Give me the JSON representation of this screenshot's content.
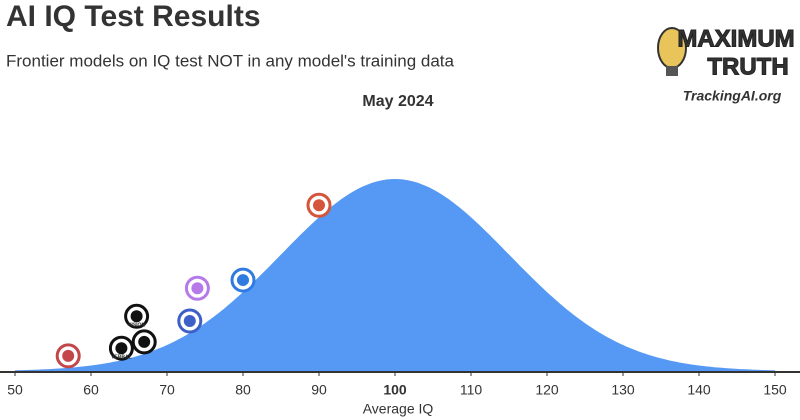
{
  "chart_data": {
    "type": "distribution",
    "title": "AI IQ Test Results",
    "subtitle": "Frontier models on IQ test NOT in any model's training data",
    "period": "May 2024",
    "brand": {
      "line1": "MAXIMUM",
      "line2": "TRUTH",
      "site": "TrackingAI.org"
    },
    "x_label": "Average IQ",
    "xlim": [
      50,
      150
    ],
    "xticks": [
      50,
      60,
      70,
      80,
      90,
      100,
      110,
      120,
      130,
      140,
      150
    ],
    "distribution": {
      "mean": 100,
      "sd": 15,
      "color": "#5599f5"
    },
    "points": [
      {
        "x": 57,
        "color": "#c2464a"
      },
      {
        "x": 64,
        "label": "VERBAL",
        "color": "#111111"
      },
      {
        "x": 67,
        "color": "#111111"
      },
      {
        "x": 66,
        "label": "VISION",
        "color": "#111111"
      },
      {
        "x": 73,
        "color": "#3f5fc8"
      },
      {
        "x": 74,
        "color": "#b57ae8"
      },
      {
        "x": 80,
        "color": "#2f7be0"
      },
      {
        "x": 90,
        "color": "#d5553c"
      }
    ]
  }
}
